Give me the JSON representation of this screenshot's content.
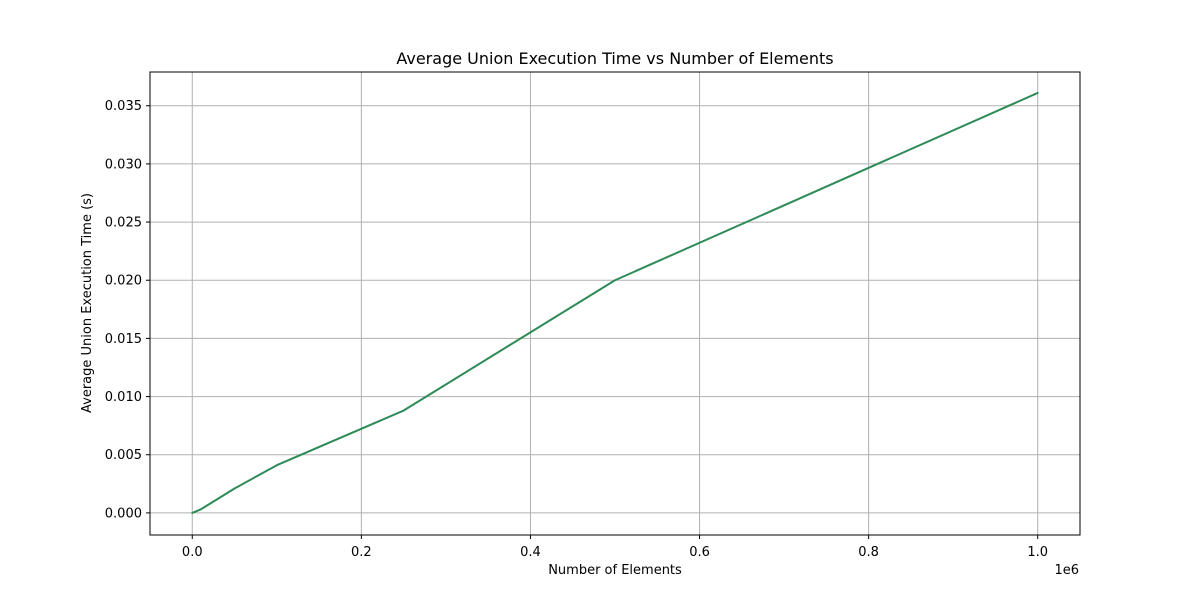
{
  "chart_data": {
    "type": "line",
    "title": "Average Union Execution Time vs Number of Elements",
    "xlabel": "Number of Elements",
    "ylabel": "Average Union Execution Time (s)",
    "x_offset_label": "1e6",
    "xlim": [
      -50000,
      1050000
    ],
    "ylim": [
      -0.0019,
      0.0379
    ],
    "x_ticks": [
      0,
      200000,
      400000,
      600000,
      800000,
      1000000
    ],
    "x_tick_labels": [
      "0.0",
      "0.2",
      "0.4",
      "0.6",
      "0.8",
      "1.0"
    ],
    "y_ticks": [
      0.0,
      0.005,
      0.01,
      0.015,
      0.02,
      0.025,
      0.03,
      0.035
    ],
    "y_tick_labels": [
      "0.000",
      "0.005",
      "0.010",
      "0.015",
      "0.020",
      "0.025",
      "0.030",
      "0.035"
    ],
    "grid": true,
    "series": [
      {
        "color": "#2e8b57",
        "x": [
          100,
          1000,
          10000,
          50000,
          100000,
          250000,
          500000,
          1000000
        ],
        "y": [
          0.0,
          3e-05,
          0.0003,
          0.0021,
          0.0041,
          0.0088,
          0.02,
          0.0361
        ]
      }
    ]
  }
}
